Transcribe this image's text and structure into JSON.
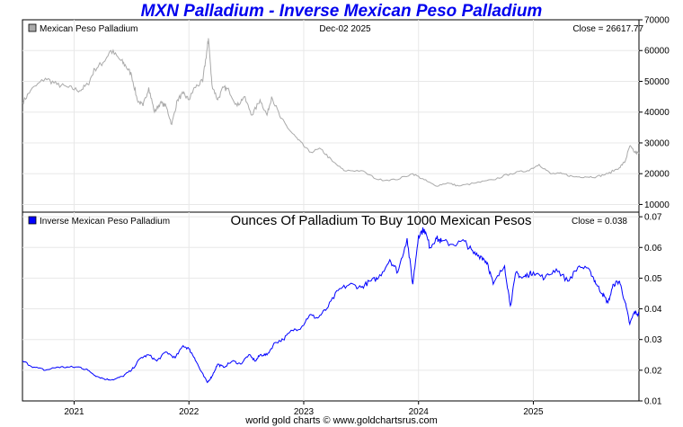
{
  "page": {
    "title": "MXN Palladium - Inverse Mexican Peso Palladium",
    "footer": "world gold charts © www.goldchartsrus.com"
  },
  "colors": {
    "top_series": "#aaaaaa",
    "bottom_series": "#0000ff",
    "title": "#0000ee",
    "grid": "#e8e8e8"
  },
  "chart_data": [
    {
      "type": "line",
      "name": "Mexican Peso Palladium",
      "legend": "Mexican Peso Palladium",
      "date_label": "Dec-02  2025",
      "close_label": "Close = 26617.77",
      "x_start": 2020.55,
      "x_end": 2025.92,
      "ylim": [
        7500,
        70000
      ],
      "yticks": [
        10000,
        20000,
        30000,
        40000,
        50000,
        60000,
        70000
      ],
      "ytick_labels": [
        "10000",
        "20000",
        "30000",
        "40000",
        "50000",
        "60000",
        "70000"
      ],
      "series": [
        {
          "name": "Mexican Peso Palladium",
          "x": [
            2020.55,
            2020.62,
            2020.75,
            2020.85,
            2020.95,
            2021.05,
            2021.12,
            2021.18,
            2021.25,
            2021.32,
            2021.4,
            2021.45,
            2021.5,
            2021.55,
            2021.6,
            2021.65,
            2021.7,
            2021.75,
            2021.8,
            2021.85,
            2021.9,
            2021.95,
            2022.0,
            2022.05,
            2022.12,
            2022.16,
            2022.17,
            2022.2,
            2022.25,
            2022.3,
            2022.35,
            2022.42,
            2022.48,
            2022.55,
            2022.62,
            2022.68,
            2022.72,
            2022.8,
            2022.88,
            2022.95,
            2023.05,
            2023.15,
            2023.25,
            2023.35,
            2023.5,
            2023.65,
            2023.8,
            2023.95,
            2024.05,
            2024.15,
            2024.25,
            2024.35,
            2024.5,
            2024.65,
            2024.8,
            2024.95,
            2025.05,
            2025.15,
            2025.25,
            2025.35,
            2025.45,
            2025.55,
            2025.65,
            2025.75,
            2025.8,
            2025.84,
            2025.88,
            2025.92
          ],
          "y": [
            43000,
            47000,
            51000,
            49000,
            48000,
            47000,
            49000,
            54000,
            56000,
            60000,
            57000,
            55000,
            52000,
            44000,
            42000,
            48000,
            40000,
            43000,
            42000,
            36000,
            44000,
            46000,
            44000,
            48000,
            50000,
            61000,
            64000,
            49000,
            44000,
            48000,
            47000,
            42000,
            45000,
            39000,
            44000,
            39000,
            45000,
            38000,
            34000,
            31000,
            27000,
            28000,
            24000,
            21000,
            21000,
            18000,
            18000,
            20000,
            18000,
            16000,
            17000,
            16000,
            17000,
            18000,
            20000,
            21000,
            23000,
            20000,
            20000,
            19000,
            19000,
            19000,
            20000,
            22000,
            24000,
            29000,
            27000,
            26618
          ]
        }
      ]
    },
    {
      "type": "line",
      "name": "Inverse Mexican Peso Palladium",
      "legend": "Inverse Mexican Peso Palladium",
      "title": "Ounces Of Palladium To Buy 1000 Mexican Pesos",
      "close_label": "Close = 0.038",
      "x_start": 2020.55,
      "x_end": 2025.92,
      "ylim": [
        0.01,
        0.0715
      ],
      "yticks": [
        0.01,
        0.02,
        0.03,
        0.04,
        0.05,
        0.06,
        0.07
      ],
      "ytick_labels": [
        "0.01",
        "0.02",
        "0.03",
        "0.04",
        "0.05",
        "0.06",
        "0.07"
      ],
      "xticks": [
        2021,
        2022,
        2023,
        2024,
        2025
      ],
      "xtick_labels": [
        "2021",
        "2022",
        "2023",
        "2024",
        "2025"
      ],
      "series": [
        {
          "name": "Inverse Mexican Peso Palladium",
          "x": [
            2020.55,
            2020.65,
            2020.75,
            2020.85,
            2020.95,
            2021.05,
            2021.12,
            2021.2,
            2021.28,
            2021.35,
            2021.42,
            2021.5,
            2021.58,
            2021.65,
            2021.72,
            2021.8,
            2021.88,
            2021.95,
            2022.0,
            2022.05,
            2022.1,
            2022.16,
            2022.2,
            2022.25,
            2022.3,
            2022.38,
            2022.45,
            2022.52,
            2022.58,
            2022.62,
            2022.68,
            2022.75,
            2022.82,
            2022.9,
            2022.98,
            2023.05,
            2023.12,
            2023.2,
            2023.3,
            2023.4,
            2023.5,
            2023.58,
            2023.65,
            2023.75,
            2023.82,
            2023.9,
            2023.95,
            2024.0,
            2024.05,
            2024.1,
            2024.15,
            2024.2,
            2024.3,
            2024.4,
            2024.48,
            2024.55,
            2024.6,
            2024.65,
            2024.75,
            2024.8,
            2024.85,
            2024.9,
            2024.95,
            2025.0,
            2025.1,
            2025.2,
            2025.3,
            2025.4,
            2025.5,
            2025.55,
            2025.6,
            2025.65,
            2025.7,
            2025.75,
            2025.8,
            2025.84,
            2025.88,
            2025.92
          ],
          "y": [
            0.023,
            0.021,
            0.02,
            0.021,
            0.021,
            0.021,
            0.02,
            0.018,
            0.017,
            0.017,
            0.018,
            0.02,
            0.024,
            0.025,
            0.023,
            0.026,
            0.024,
            0.028,
            0.027,
            0.024,
            0.02,
            0.016,
            0.018,
            0.022,
            0.021,
            0.023,
            0.022,
            0.025,
            0.023,
            0.025,
            0.025,
            0.029,
            0.03,
            0.033,
            0.034,
            0.038,
            0.037,
            0.04,
            0.046,
            0.048,
            0.047,
            0.049,
            0.05,
            0.056,
            0.052,
            0.063,
            0.048,
            0.064,
            0.066,
            0.06,
            0.063,
            0.062,
            0.061,
            0.062,
            0.058,
            0.057,
            0.055,
            0.048,
            0.054,
            0.041,
            0.052,
            0.05,
            0.051,
            0.052,
            0.05,
            0.053,
            0.049,
            0.054,
            0.052,
            0.048,
            0.045,
            0.042,
            0.048,
            0.049,
            0.042,
            0.035,
            0.039,
            0.038
          ]
        }
      ]
    }
  ]
}
